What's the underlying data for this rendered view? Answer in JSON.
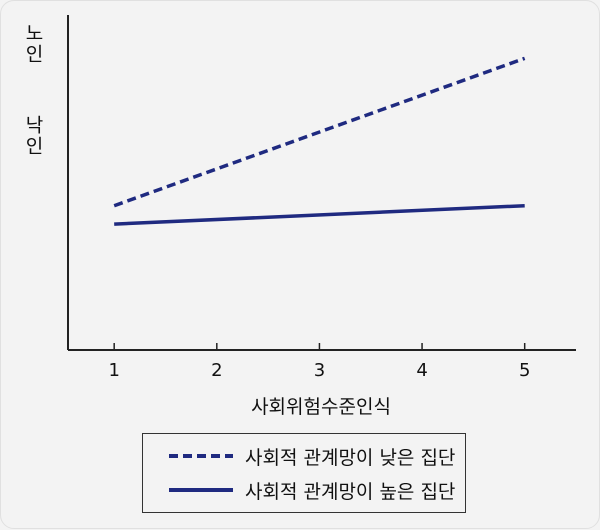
{
  "chart_data": {
    "type": "line",
    "xlabel": "사회위험수준인식",
    "ylabel": "노인 낙인",
    "x": [
      1,
      2,
      3,
      4,
      5
    ],
    "xlim": [
      0.55,
      5.5
    ],
    "ylim": [
      0,
      1
    ],
    "grid": false,
    "legend_position": "bottom",
    "series": [
      {
        "name": "사회적 관계망이 낮은 집단",
        "style": "dashed",
        "color": "#1f2a80",
        "values": [
          0.47,
          0.59,
          0.71,
          0.83,
          0.95
        ]
      },
      {
        "name": "사회적 관계망이 높은 집단",
        "style": "solid",
        "color": "#1f2a80",
        "values": [
          0.41,
          0.425,
          0.44,
          0.455,
          0.47
        ]
      }
    ]
  }
}
